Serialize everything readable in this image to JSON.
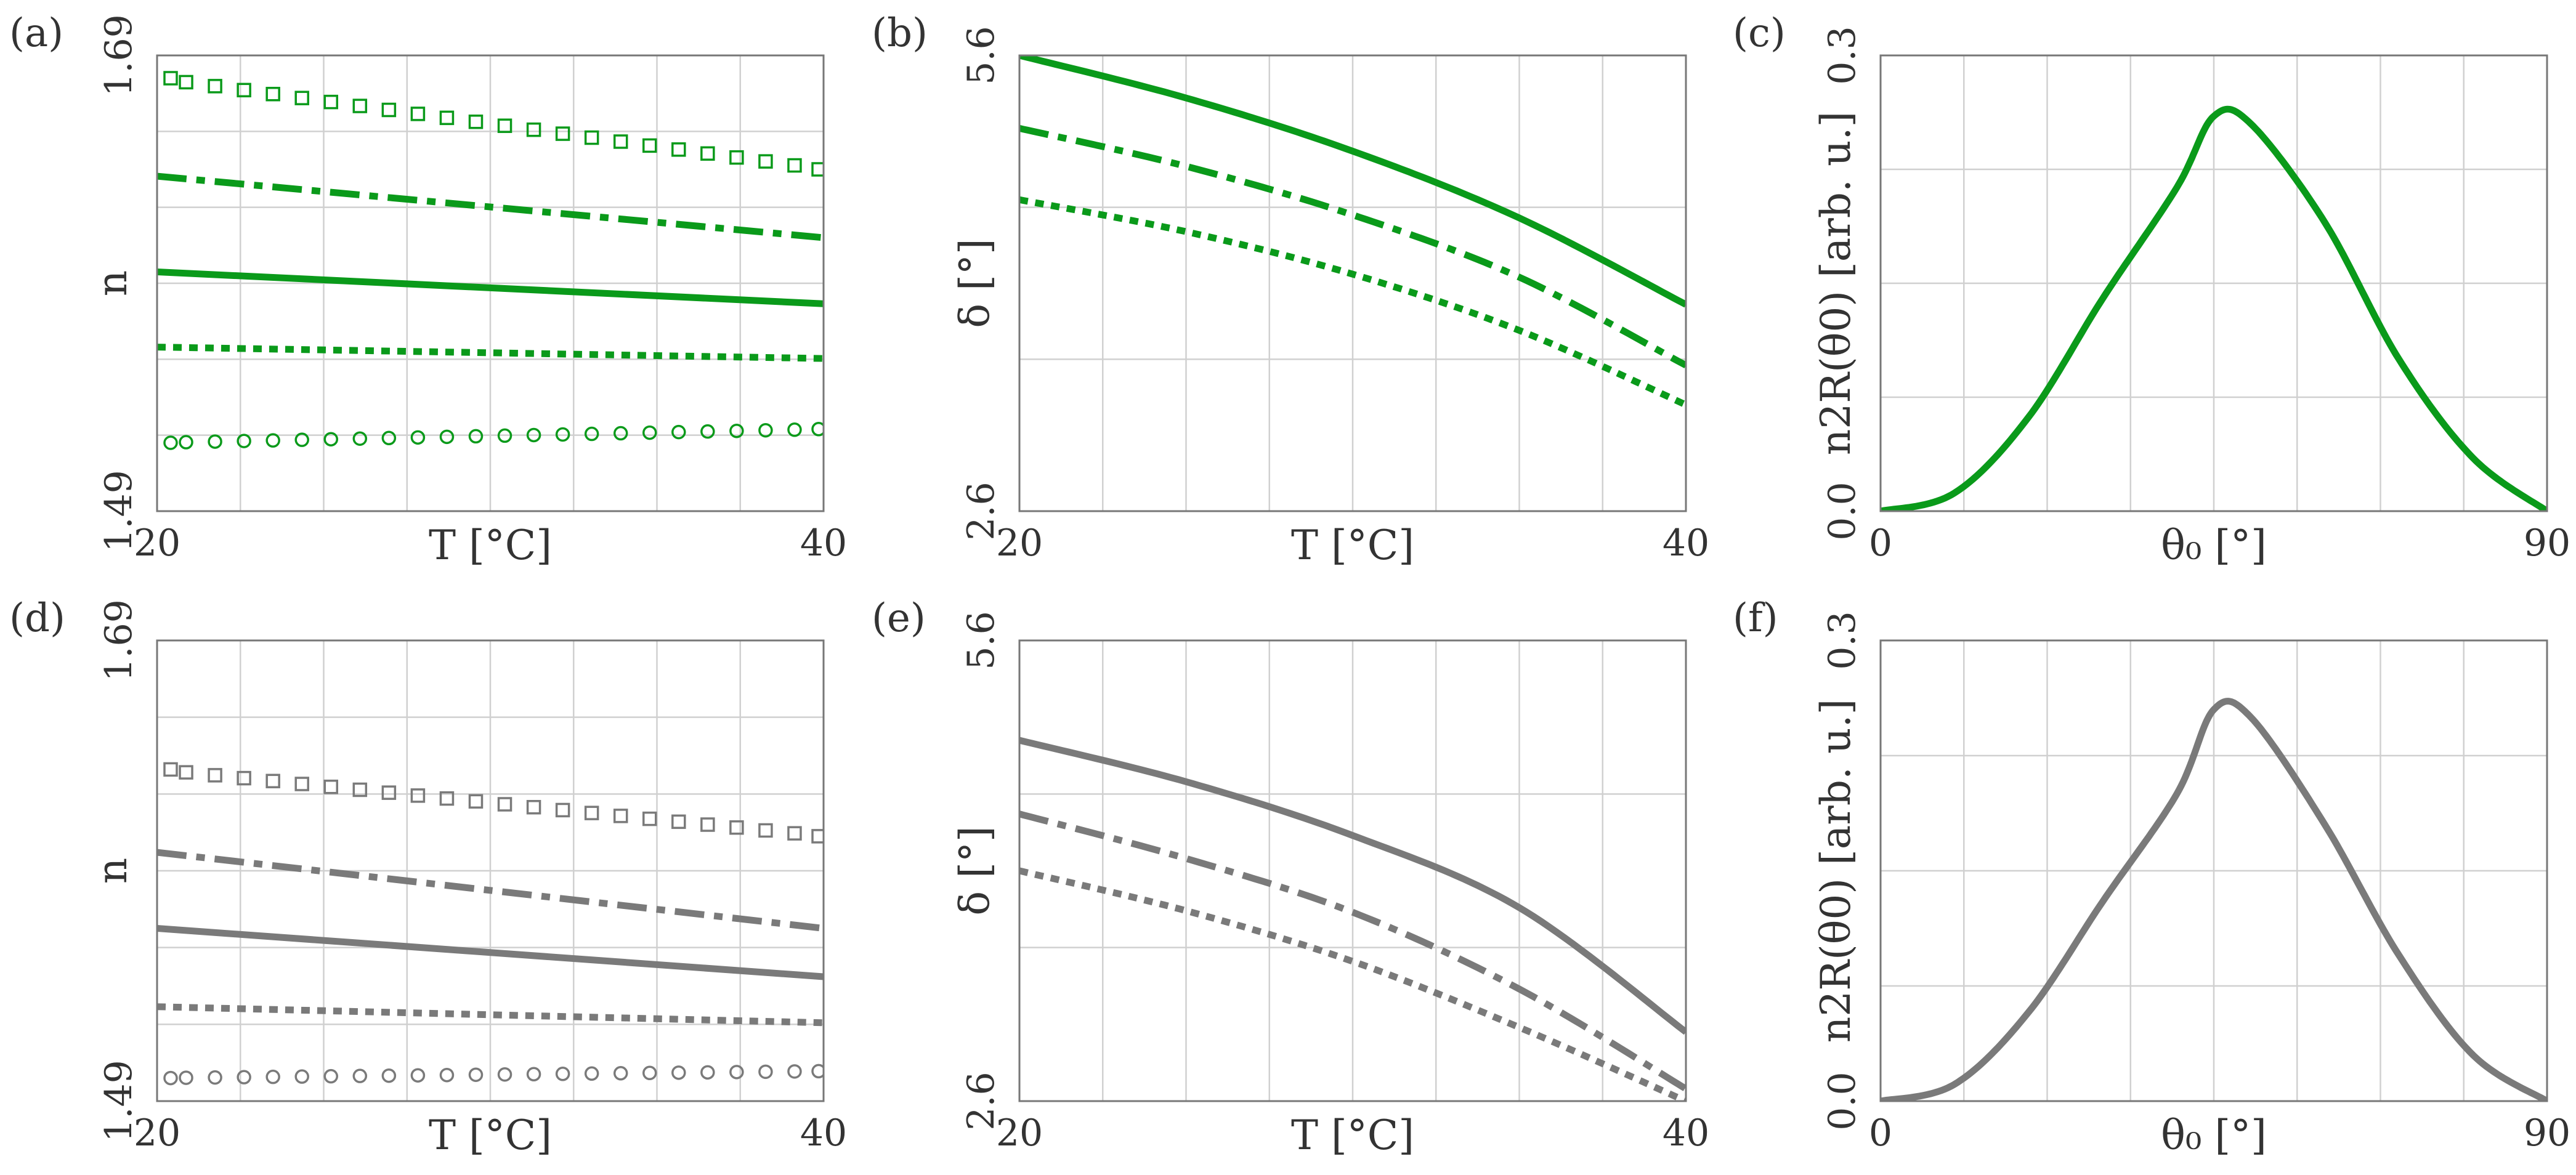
{
  "figure": {
    "line_colors": {
      "green": "#0a9a1a",
      "gray": "#7a7a7a"
    },
    "grid_color": "#d0d0d0",
    "frame_color": "#777777"
  },
  "chart_data": [
    {
      "panel": "(a)",
      "type": "line",
      "color": "green",
      "xlabel": "T [°C]",
      "ylabel": "n",
      "xlim": [
        20,
        40
      ],
      "ylim": [
        1.49,
        1.69
      ],
      "xtick_labels": [
        "20",
        "40"
      ],
      "ytick_labels": [
        "1.49",
        "1.69"
      ],
      "grid": true,
      "x_gridlines": 8,
      "y_gridlines": 6,
      "series": [
        {
          "style": "square-markers",
          "x": [
            20,
            40
          ],
          "y": [
            1.68,
            1.64
          ]
        },
        {
          "style": "dash-dot",
          "x": [
            20,
            40
          ],
          "y": [
            1.637,
            1.61
          ]
        },
        {
          "style": "solid",
          "x": [
            20,
            40
          ],
          "y": [
            1.595,
            1.581
          ]
        },
        {
          "style": "dotted",
          "x": [
            20,
            40
          ],
          "y": [
            1.562,
            1.557
          ]
        },
        {
          "style": "circle-markers",
          "x": [
            20,
            40
          ],
          "y": [
            1.52,
            1.526
          ]
        }
      ]
    },
    {
      "panel": "(b)",
      "type": "line",
      "color": "green",
      "xlabel": "T [°C]",
      "ylabel": "δ [°]",
      "xlim": [
        20,
        40
      ],
      "ylim": [
        2.6,
        5.6
      ],
      "xtick_labels": [
        "20",
        "40"
      ],
      "ytick_labels": [
        "2.6",
        "5.6"
      ],
      "grid": true,
      "x_gridlines": 8,
      "y_gridlines": 3,
      "series": [
        {
          "style": "solid",
          "x": [
            20,
            25,
            30,
            35,
            40
          ],
          "y": [
            5.6,
            5.32,
            4.97,
            4.53,
            3.96
          ]
        },
        {
          "style": "dash-dot",
          "x": [
            20,
            25,
            30,
            35,
            40
          ],
          "y": [
            5.12,
            4.87,
            4.55,
            4.14,
            3.56
          ]
        },
        {
          "style": "dotted",
          "x": [
            20,
            25,
            30,
            35,
            40
          ],
          "y": [
            4.65,
            4.44,
            4.16,
            3.79,
            3.3
          ]
        }
      ]
    },
    {
      "panel": "(c)",
      "type": "line",
      "color": "green",
      "xlabel": "θ₀ [°]",
      "ylabel": "n2R(θ0) [arb. u.]",
      "xlim": [
        0,
        90
      ],
      "ylim": [
        0.0,
        0.3
      ],
      "xtick_labels": [
        "0",
        "90"
      ],
      "ytick_labels": [
        "0.0",
        "0.3"
      ],
      "grid": true,
      "x_gridlines": 8,
      "y_gridlines": 4,
      "series": [
        {
          "style": "solid",
          "x": [
            0,
            10,
            20,
            30,
            40,
            45,
            50,
            60,
            70,
            80,
            90
          ],
          "y": [
            0.0,
            0.012,
            0.062,
            0.14,
            0.213,
            0.26,
            0.255,
            0.19,
            0.1,
            0.035,
            0.0
          ]
        }
      ]
    },
    {
      "panel": "(d)",
      "type": "line",
      "color": "gray",
      "xlabel": "T [°C]",
      "ylabel": "n",
      "xlim": [
        20,
        40
      ],
      "ylim": [
        1.49,
        1.69
      ],
      "xtick_labels": [
        "20",
        "40"
      ],
      "ytick_labels": [
        "1.49",
        "1.69"
      ],
      "grid": true,
      "x_gridlines": 8,
      "y_gridlines": 6,
      "series": [
        {
          "style": "square-markers",
          "x": [
            20,
            40
          ],
          "y": [
            1.634,
            1.605
          ]
        },
        {
          "style": "dash-dot",
          "x": [
            20,
            40
          ],
          "y": [
            1.598,
            1.565
          ]
        },
        {
          "style": "solid",
          "x": [
            20,
            40
          ],
          "y": [
            1.565,
            1.544
          ]
        },
        {
          "style": "dotted",
          "x": [
            20,
            40
          ],
          "y": [
            1.531,
            1.524
          ]
        },
        {
          "style": "circle-markers",
          "x": [
            20,
            40
          ],
          "y": [
            1.5,
            1.503
          ]
        }
      ]
    },
    {
      "panel": "(e)",
      "type": "line",
      "color": "gray",
      "xlabel": "T [°C]",
      "ylabel": "δ [°]",
      "xlim": [
        20,
        40
      ],
      "ylim": [
        2.6,
        5.6
      ],
      "xtick_labels": [
        "20",
        "40"
      ],
      "ytick_labels": [
        "2.6",
        "5.6"
      ],
      "grid": true,
      "x_gridlines": 8,
      "y_gridlines": 3,
      "series": [
        {
          "style": "solid",
          "x": [
            20,
            25,
            30,
            35,
            40
          ],
          "y": [
            4.95,
            4.68,
            4.33,
            3.86,
            3.05
          ]
        },
        {
          "style": "dash-dot",
          "x": [
            20,
            25,
            30,
            35,
            40
          ],
          "y": [
            4.47,
            4.18,
            3.83,
            3.33,
            2.68
          ]
        },
        {
          "style": "dotted",
          "x": [
            20,
            25,
            30,
            35,
            40
          ],
          "y": [
            4.1,
            3.84,
            3.51,
            3.08,
            2.6
          ]
        }
      ]
    },
    {
      "panel": "(f)",
      "type": "line",
      "color": "gray",
      "xlabel": "θ₀ [°]",
      "ylabel": "n2R(θ0) [arb. u.]",
      "xlim": [
        0,
        90
      ],
      "ylim": [
        0.0,
        0.3
      ],
      "xtick_labels": [
        "0",
        "90"
      ],
      "ytick_labels": [
        "0.0",
        "0.3"
      ],
      "grid": true,
      "x_gridlines": 8,
      "y_gridlines": 4,
      "series": [
        {
          "style": "solid",
          "x": [
            0,
            10,
            20,
            30,
            40,
            45,
            50,
            60,
            70,
            80,
            90
          ],
          "y": [
            0.0,
            0.011,
            0.058,
            0.13,
            0.2,
            0.255,
            0.25,
            0.18,
            0.095,
            0.03,
            0.0
          ]
        }
      ]
    }
  ]
}
